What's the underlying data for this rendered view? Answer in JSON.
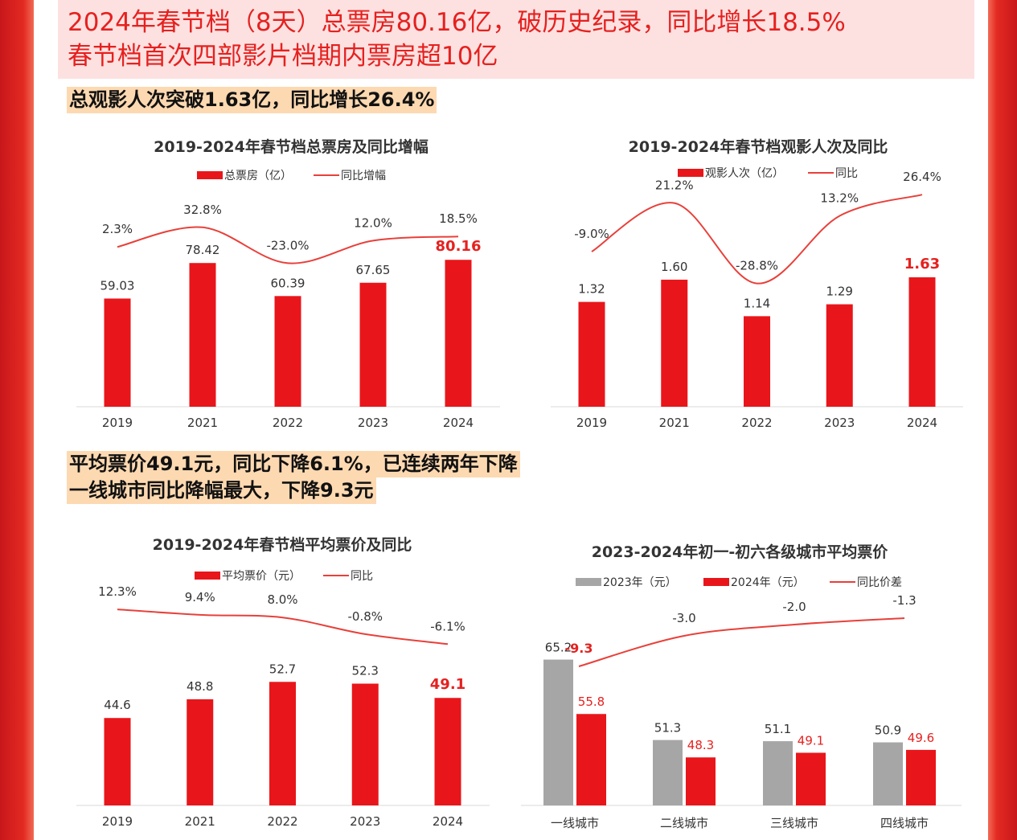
{
  "headline": {
    "line1": "2024年春节档（8天）总票房80.16亿，破历史纪录，同比增长18.5%",
    "line2": "春节档首次四部影片档期内票房超10亿"
  },
  "notes": {
    "audience": "总观影人次突破1.63亿，同比增长26.4%",
    "price_line1": "平均票价49.1元，同比下降6.1%，已连续两年下降",
    "price_line2": "一线城市同比降幅最大，下降9.3元"
  },
  "colors": {
    "accent": "#e5211f",
    "bar_red": "#e8161a",
    "bar_gray": "#a6a6a6",
    "line_red": "#e8403a",
    "note_bg": "#fdd9b1",
    "headline_bg": "#fde1e1"
  },
  "chart_data": [
    {
      "type": "bar",
      "title": "2019-2024年春节档总票房及同比增幅",
      "categories": [
        "2019",
        "2021",
        "2022",
        "2023",
        "2024"
      ],
      "series": [
        {
          "name": "总票房（亿）",
          "kind": "bar",
          "values": [
            59.03,
            78.42,
            60.39,
            67.65,
            80.16
          ],
          "labels": [
            "59.03",
            "78.42",
            "60.39",
            "67.65",
            "80.16"
          ]
        },
        {
          "name": "同比增幅",
          "kind": "line",
          "values": [
            2.3,
            32.8,
            -23.0,
            12.0,
            18.5
          ],
          "labels": [
            "2.3%",
            "32.8%",
            "-23.0%",
            "12.0%",
            "18.5%"
          ]
        }
      ],
      "highlight": "80.16"
    },
    {
      "type": "bar",
      "title": "2019-2024年春节档观影人次及同比",
      "categories": [
        "2019",
        "2021",
        "2022",
        "2023",
        "2024"
      ],
      "series": [
        {
          "name": "观影人次（亿）",
          "kind": "bar",
          "values": [
            1.32,
            1.6,
            1.14,
            1.29,
            1.63
          ],
          "labels": [
            "1.32",
            "1.60",
            "1.14",
            "1.29",
            "1.63"
          ]
        },
        {
          "name": "同比",
          "kind": "line",
          "values": [
            -9.0,
            21.2,
            -28.8,
            13.2,
            26.4
          ],
          "labels": [
            "-9.0%",
            "21.2%",
            "-28.8%",
            "13.2%",
            "26.4%"
          ]
        }
      ],
      "highlight": "1.63"
    },
    {
      "type": "bar",
      "title": "2019-2024年春节档平均票价及同比",
      "categories": [
        "2019",
        "2021",
        "2022",
        "2023",
        "2024"
      ],
      "series": [
        {
          "name": "平均票价（元）",
          "kind": "bar",
          "values": [
            44.6,
            48.8,
            52.7,
            52.3,
            49.1
          ],
          "labels": [
            "44.6",
            "48.8",
            "52.7",
            "52.3",
            "49.1"
          ]
        },
        {
          "name": "同比",
          "kind": "line",
          "values": [
            12.3,
            9.4,
            8.0,
            -0.8,
            -6.1
          ],
          "labels": [
            "12.3%",
            "9.4%",
            "8.0%",
            "-0.8%",
            "-6.1%"
          ]
        }
      ],
      "highlight": "49.1"
    },
    {
      "type": "bar",
      "title": "2023-2024年初一-初六各级城市平均票价",
      "categories": [
        "一线城市",
        "二线城市",
        "三线城市",
        "四线城市"
      ],
      "series": [
        {
          "name": "2023年（元）",
          "kind": "bar",
          "color": "gray",
          "values": [
            65.2,
            51.3,
            51.1,
            50.9
          ],
          "labels": [
            "65.2",
            "51.3",
            "51.1",
            "50.9"
          ]
        },
        {
          "name": "2024年（元）",
          "kind": "bar",
          "color": "red",
          "values": [
            55.8,
            48.3,
            49.1,
            49.6
          ],
          "labels": [
            "55.8",
            "48.3",
            "49.1",
            "49.6"
          ]
        },
        {
          "name": "同比价差",
          "kind": "line",
          "values": [
            -9.3,
            -3.0,
            -2.0,
            -1.3
          ],
          "labels": [
            "-9.3",
            "-3.0",
            "-2.0",
            "-1.3"
          ]
        }
      ]
    }
  ]
}
